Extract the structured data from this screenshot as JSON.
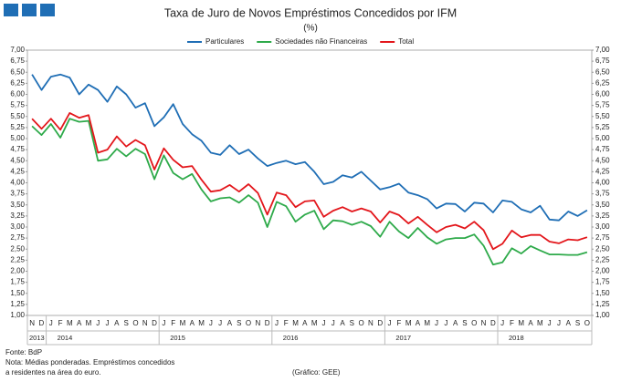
{
  "chart_data": {
    "type": "line",
    "title": "Taxa de Juro de Novos Empréstimos Concedidos por IFM",
    "subtitle": "(%)",
    "categories": [
      "N",
      "D",
      "J",
      "F",
      "M",
      "A",
      "M",
      "J",
      "J",
      "A",
      "S",
      "O",
      "N",
      "D",
      "J",
      "F",
      "M",
      "A",
      "M",
      "J",
      "J",
      "A",
      "S",
      "O",
      "N",
      "D",
      "J",
      "F",
      "M",
      "A",
      "M",
      "J",
      "J",
      "A",
      "S",
      "O",
      "N",
      "D",
      "J",
      "F",
      "M",
      "A",
      "M",
      "J",
      "J",
      "A",
      "S",
      "O",
      "N",
      "D",
      "J",
      "F",
      "M",
      "A",
      "M",
      "J",
      "J",
      "A",
      "S",
      "O"
    ],
    "years": [
      "2013",
      "2014",
      "2015",
      "2016",
      "2017",
      "2018"
    ],
    "series": [
      {
        "name": "Particulares",
        "color": "#1f6eb5",
        "values": [
          6.45,
          6.1,
          6.4,
          6.45,
          6.38,
          6.0,
          6.22,
          6.1,
          5.83,
          6.18,
          6.0,
          5.7,
          5.8,
          5.28,
          5.48,
          5.78,
          5.33,
          5.1,
          4.95,
          4.68,
          4.63,
          4.85,
          4.65,
          4.75,
          4.55,
          4.38,
          4.45,
          4.5,
          4.42,
          4.47,
          4.25,
          3.97,
          4.02,
          4.17,
          4.12,
          4.25,
          4.05,
          3.85,
          3.9,
          3.98,
          3.78,
          3.72,
          3.63,
          3.42,
          3.53,
          3.52,
          3.35,
          3.55,
          3.53,
          3.33,
          3.6,
          3.57,
          3.4,
          3.33,
          3.48,
          3.17,
          3.15,
          3.35,
          3.25,
          3.38
        ]
      },
      {
        "name": "Sociedades não Financeiras",
        "color": "#2eaa4a",
        "values": [
          5.28,
          5.08,
          5.33,
          5.02,
          5.45,
          5.38,
          5.4,
          4.5,
          4.53,
          4.77,
          4.6,
          4.77,
          4.65,
          4.08,
          4.62,
          4.22,
          4.08,
          4.2,
          3.85,
          3.58,
          3.65,
          3.67,
          3.55,
          3.72,
          3.55,
          3.0,
          3.57,
          3.47,
          3.12,
          3.28,
          3.37,
          2.95,
          3.15,
          3.13,
          3.05,
          3.12,
          3.02,
          2.78,
          3.12,
          2.9,
          2.75,
          2.98,
          2.77,
          2.62,
          2.72,
          2.75,
          2.75,
          2.83,
          2.58,
          2.15,
          2.2,
          2.52,
          2.4,
          2.57,
          2.47,
          2.38,
          2.38,
          2.37,
          2.37,
          2.43
        ]
      },
      {
        "name": "Total",
        "color": "#e3161b",
        "values": [
          5.45,
          5.22,
          5.45,
          5.2,
          5.58,
          5.47,
          5.53,
          4.68,
          4.75,
          5.05,
          4.82,
          4.97,
          4.85,
          4.3,
          4.78,
          4.52,
          4.35,
          4.38,
          4.07,
          3.8,
          3.83,
          3.95,
          3.8,
          3.97,
          3.77,
          3.28,
          3.78,
          3.72,
          3.45,
          3.58,
          3.6,
          3.23,
          3.37,
          3.45,
          3.35,
          3.42,
          3.35,
          3.1,
          3.35,
          3.27,
          3.08,
          3.23,
          3.05,
          2.88,
          3.0,
          3.05,
          2.97,
          3.12,
          2.93,
          2.5,
          2.62,
          2.92,
          2.77,
          2.82,
          2.82,
          2.67,
          2.63,
          2.72,
          2.7,
          2.77
        ]
      }
    ],
    "ylim": [
      1,
      7
    ],
    "yticks": [
      {
        "value": 1,
        "label": "1,00"
      },
      {
        "value": 1.25,
        "label": "1,25"
      },
      {
        "value": 1.5,
        "label": "1,50"
      },
      {
        "value": 1.75,
        "label": "1,75"
      },
      {
        "value": 2,
        "label": "2,00"
      },
      {
        "value": 2.25,
        "label": "2,25"
      },
      {
        "value": 2.5,
        "label": "2,50"
      },
      {
        "value": 2.75,
        "label": "2,75"
      },
      {
        "value": 3,
        "label": "3,00"
      },
      {
        "value": 3.25,
        "label": "3,25"
      },
      {
        "value": 3.5,
        "label": "3,50"
      },
      {
        "value": 3.75,
        "label": "3,75"
      },
      {
        "value": 4,
        "label": "4,00"
      },
      {
        "value": 4.25,
        "label": "4,25"
      },
      {
        "value": 4.5,
        "label": "4,50"
      },
      {
        "value": 4.75,
        "label": "4,75"
      },
      {
        "value": 5,
        "label": "5,00"
      },
      {
        "value": 5.25,
        "label": "5,25"
      },
      {
        "value": 5.5,
        "label": "5,50"
      },
      {
        "value": 5.75,
        "label": "5,75"
      },
      {
        "value": 6,
        "label": "6,00"
      },
      {
        "value": 6.25,
        "label": "6,25"
      },
      {
        "value": 6.5,
        "label": "6,50"
      },
      {
        "value": 6.75,
        "label": "6,75"
      },
      {
        "value": 7,
        "label": "7,00"
      }
    ],
    "notes": [
      "Fonte: BdP",
      "Nota: Médias ponderadas.  Empréstimos concedidos",
      "a residentes na área do euro."
    ],
    "credit": "(Gráfico: GEE)"
  }
}
